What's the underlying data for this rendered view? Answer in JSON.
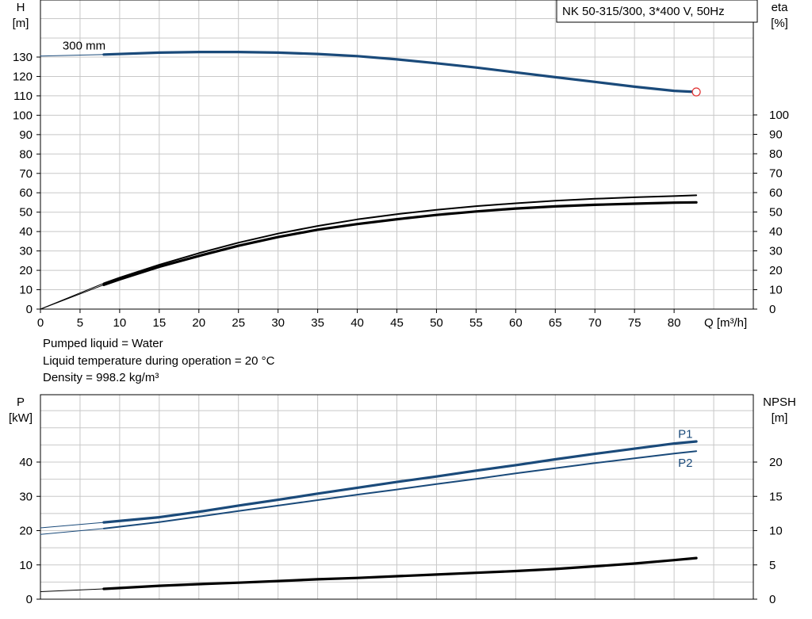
{
  "info": {
    "lines": [
      "Pumped liquid = Water",
      "Liquid temperature during operation = 20 °C",
      "Density = 998.2 kg/m³"
    ]
  },
  "chart_data": [
    {
      "type": "line",
      "title": "NK 50-315/300, 3*400 V, 50Hz",
      "x_axis": {
        "label": "Q [m³/h]",
        "range": [
          0,
          90
        ],
        "ticks": [
          "0",
          "5",
          "10",
          "15",
          "20",
          "25",
          "30",
          "35",
          "40",
          "45",
          "50",
          "55",
          "60",
          "65",
          "70",
          "75",
          "80"
        ]
      },
      "y_left": {
        "label_top": "H",
        "label_unit": "[m]",
        "range": [
          0,
          130
        ],
        "ticks": [
          "0",
          "10",
          "20",
          "30",
          "40",
          "50",
          "60",
          "70",
          "80",
          "90",
          "100",
          "110",
          "120",
          "130"
        ]
      },
      "y_right": {
        "label_top": "eta",
        "label_unit": "[%]",
        "range": [
          0,
          100
        ],
        "ticks": [
          "0",
          "10",
          "20",
          "30",
          "40",
          "50",
          "60",
          "70",
          "80",
          "90",
          "100"
        ]
      },
      "grid": true,
      "annotations": [
        {
          "text": "300 mm",
          "x": 8,
          "y": 131.5
        }
      ],
      "duty_point": {
        "x": 82.8,
        "y": 112
      },
      "series": [
        {
          "axis": "left",
          "color": "#1a4a7a",
          "width": 3.2,
          "x": [
            0,
            8
          ],
          "y": [
            130.5,
            131.3
          ],
          "extension": true
        },
        {
          "axis": "left",
          "color": "#1a4a7a",
          "width": 3.2,
          "x": [
            8,
            15,
            20,
            25,
            30,
            35,
            40,
            45,
            50,
            55,
            60,
            65,
            70,
            75,
            80,
            82.8
          ],
          "y": [
            131.3,
            132.3,
            132.6,
            132.6,
            132.3,
            131.6,
            130.5,
            128.8,
            126.8,
            124.6,
            122.1,
            119.6,
            117.2,
            114.7,
            112.6,
            112
          ]
        },
        {
          "axis": "right",
          "color": "#000000",
          "width": 3.2,
          "x": [
            0,
            8
          ],
          "y": [
            0,
            12.5
          ],
          "extension": true
        },
        {
          "axis": "right",
          "color": "#000000",
          "width": 3.2,
          "x": [
            8,
            10,
            15,
            20,
            25,
            30,
            35,
            40,
            45,
            50,
            55,
            60,
            65,
            70,
            75,
            80,
            82.8
          ],
          "y": [
            12.5,
            15.3,
            21.8,
            27.4,
            32.6,
            37.1,
            40.9,
            43.8,
            46.3,
            48.5,
            50.3,
            51.8,
            52.9,
            53.7,
            54.3,
            54.8,
            55
          ]
        },
        {
          "axis": "right",
          "color": "#000000",
          "width": 2,
          "x": [
            0,
            8
          ],
          "y": [
            0,
            13.3
          ],
          "extension": true
        },
        {
          "axis": "right",
          "color": "#000000",
          "width": 2,
          "x": [
            8,
            10,
            15,
            20,
            25,
            30,
            35,
            40,
            45,
            50,
            55,
            60,
            65,
            70,
            75,
            80,
            82.8
          ],
          "y": [
            13.3,
            16.2,
            22.8,
            28.8,
            34.2,
            38.9,
            42.8,
            46.2,
            48.9,
            51.1,
            53.0,
            54.5,
            55.8,
            56.8,
            57.6,
            58.2,
            58.6
          ]
        }
      ]
    },
    {
      "type": "line",
      "x_axis": {
        "range": [
          0,
          90
        ]
      },
      "y_left": {
        "label_top": "P",
        "label_unit": "[kW]",
        "range": [
          0,
          50
        ],
        "ticks": [
          "0",
          "10",
          "20",
          "30",
          "40"
        ]
      },
      "y_right": {
        "label_top": "NPSH",
        "label_unit": "[m]",
        "range": [
          0,
          25
        ],
        "ticks": [
          "0",
          "5",
          "10",
          "15",
          "20"
        ]
      },
      "grid": true,
      "series": [
        {
          "name": "P1",
          "axis": "left",
          "color": "#1a4a7a",
          "width": 3.2,
          "x": [
            0,
            8
          ],
          "y": [
            20.8,
            22.4
          ],
          "extension": true
        },
        {
          "name": "P1",
          "axis": "left",
          "color": "#1a4a7a",
          "width": 3.2,
          "x": [
            8,
            15,
            20,
            25,
            30,
            35,
            40,
            45,
            50,
            55,
            60,
            65,
            70,
            75,
            80,
            82.8
          ],
          "y": [
            22.4,
            23.9,
            25.5,
            27.3,
            29.0,
            30.8,
            32.5,
            34.2,
            35.8,
            37.5,
            39.1,
            40.8,
            42.4,
            43.9,
            45.4,
            46.0
          ]
        },
        {
          "name": "P2",
          "axis": "left",
          "color": "#1a4a7a",
          "width": 2,
          "x": [
            0,
            8
          ],
          "y": [
            18.9,
            20.6
          ],
          "extension": true
        },
        {
          "name": "P2",
          "axis": "left",
          "color": "#1a4a7a",
          "width": 2,
          "x": [
            8,
            15,
            20,
            25,
            30,
            35,
            40,
            45,
            50,
            55,
            60,
            65,
            70,
            75,
            80,
            82.8
          ],
          "y": [
            20.6,
            22.5,
            24.1,
            25.7,
            27.3,
            28.9,
            30.5,
            32.0,
            33.6,
            35.1,
            36.7,
            38.2,
            39.7,
            41.1,
            42.5,
            43.2
          ]
        },
        {
          "name": "NPSH",
          "axis": "right",
          "color": "#000000",
          "width": 3.2,
          "x": [
            0,
            8
          ],
          "y": [
            1.1,
            1.5
          ],
          "extension": true
        },
        {
          "name": "NPSH",
          "axis": "right",
          "color": "#000000",
          "width": 3.2,
          "x": [
            8,
            15,
            20,
            25,
            30,
            35,
            40,
            45,
            50,
            55,
            60,
            65,
            70,
            75,
            80,
            82.8
          ],
          "y": [
            1.5,
            1.95,
            2.2,
            2.4,
            2.65,
            2.9,
            3.1,
            3.35,
            3.6,
            3.85,
            4.1,
            4.4,
            4.8,
            5.2,
            5.7,
            6.0
          ]
        }
      ],
      "labels": [
        {
          "text": "P1",
          "x": 80.5,
          "y": 48.2,
          "color": "#1a4a7a"
        },
        {
          "text": "P2",
          "x": 80.5,
          "y": 39.8,
          "color": "#1a4a7a"
        }
      ]
    }
  ]
}
